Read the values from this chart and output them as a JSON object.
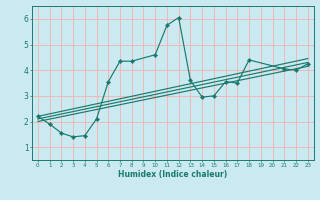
{
  "title": "",
  "xlabel": "Humidex (Indice chaleur)",
  "ylabel": "",
  "background_color": "#cbe9f0",
  "grid_color": "#f0b8b8",
  "line_color": "#1a7a6e",
  "xlim": [
    -0.5,
    23.5
  ],
  "ylim": [
    0.5,
    6.5
  ],
  "xticks": [
    0,
    1,
    2,
    3,
    4,
    5,
    6,
    7,
    8,
    9,
    10,
    11,
    12,
    13,
    14,
    15,
    16,
    17,
    18,
    19,
    20,
    21,
    22,
    23
  ],
  "yticks": [
    1,
    2,
    3,
    4,
    5,
    6
  ],
  "series": [
    {
      "x": [
        0,
        1,
        2,
        3,
        4,
        5,
        6,
        7,
        8,
        10,
        11,
        12,
        13,
        14,
        15,
        16,
        17,
        18,
        21,
        22,
        23
      ],
      "y": [
        2.2,
        1.9,
        1.55,
        1.4,
        1.45,
        2.1,
        3.55,
        4.35,
        4.35,
        4.6,
        5.75,
        6.05,
        3.6,
        2.95,
        3.0,
        3.55,
        3.5,
        4.4,
        4.05,
        4.0,
        4.25
      ]
    },
    {
      "x": [
        0,
        23
      ],
      "y": [
        2.1,
        4.3
      ]
    },
    {
      "x": [
        0,
        23
      ],
      "y": [
        2.0,
        4.15
      ]
    },
    {
      "x": [
        0,
        23
      ],
      "y": [
        2.2,
        4.45
      ]
    }
  ]
}
